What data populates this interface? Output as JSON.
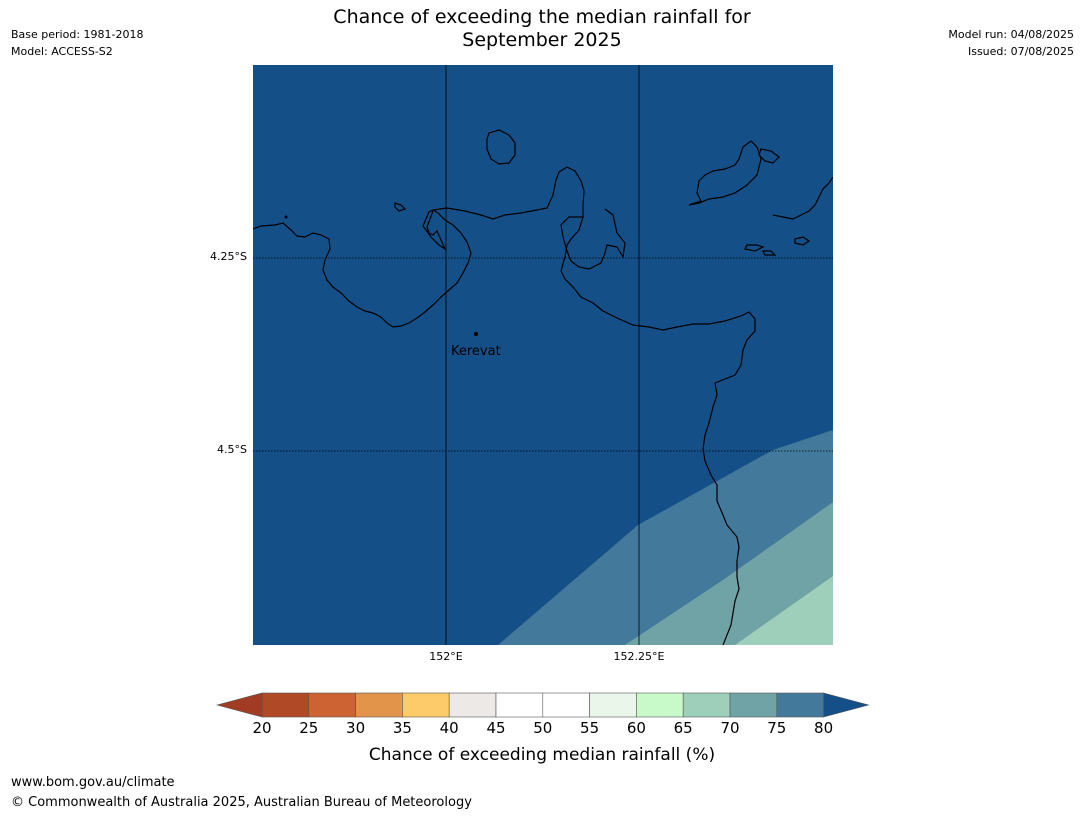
{
  "title_line1": "Chance of exceeding the median rainfall for",
  "title_line2": "September 2025",
  "meta_left": {
    "base_period": "Base period: 1981-2018",
    "model": "Model: ACCESS-S2"
  },
  "meta_right": {
    "model_run": "Model run: 04/08/2025",
    "issued": "Issued: 07/08/2025"
  },
  "map": {
    "place": "Kerevat",
    "lat_labels": [
      "4.25°S",
      "4.5°S"
    ],
    "lon_labels": [
      "152°E",
      "152.25°E"
    ]
  },
  "colorbar": {
    "label": "Chance of exceeding median rainfall (%)",
    "ticks": [
      "20",
      "25",
      "30",
      "35",
      "40",
      "45",
      "50",
      "55",
      "60",
      "65",
      "70",
      "75",
      "80"
    ],
    "colors": [
      "#b04a26",
      "#cd6232",
      "#e2944a",
      "#fecb6a",
      "#ece9e6",
      "#ffffff",
      "#ffffff",
      "#e9f6e9",
      "#c8f9c8",
      "#9ecfba",
      "#70a3a6",
      "#437a9b"
    ],
    "under_color": "#a23b23",
    "over_color": "#154f88"
  },
  "footer": {
    "url": "www.bom.gov.au/climate",
    "copyright": "© Commonwealth of Australia 2025, Australian Bureau of Meteorology"
  }
}
